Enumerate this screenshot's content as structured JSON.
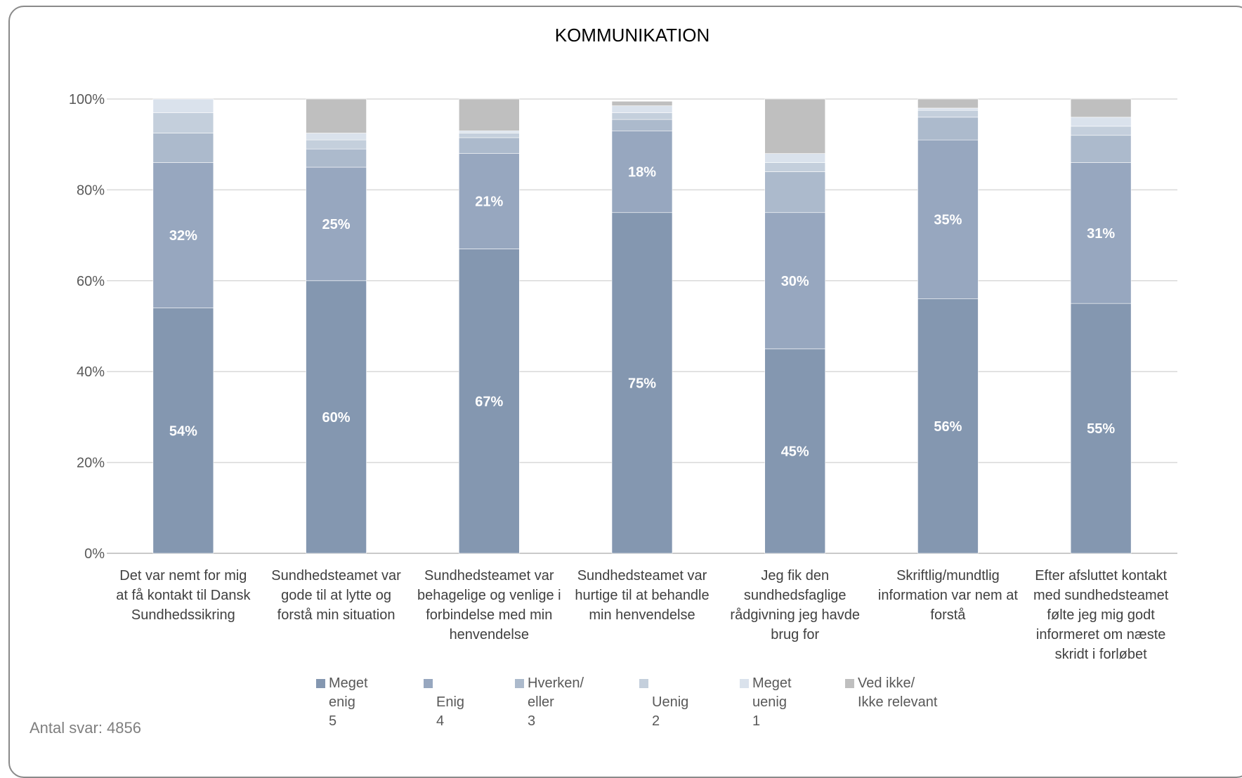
{
  "chart_data": {
    "type": "bar",
    "stacked": true,
    "title": "KOMMUNIKATION",
    "ylim": [
      0,
      100
    ],
    "y_ticks": [
      "0%",
      "20%",
      "40%",
      "60%",
      "80%",
      "100%"
    ],
    "grid": true,
    "legend_position": "bottom",
    "categories": [
      "Det var nemt for mig at få kontakt til Dansk Sundhedssikring",
      "Sundhedsteamet var gode til at lytte og forstå min situation",
      "Sundhedsteamet var behagelige og venlige i forbindelse med min henvendelse",
      "Sundhedsteamet var hurtige til at behandle min henvendelse",
      "Jeg fik den sundhedsfaglige rådgivning jeg havde brug for",
      "Skriftlig/mundtlig information var nem at forstå",
      "Efter afsluttet kontakt med sundhedsteamet følte jeg mig godt informeret om næste skridt i forløbet"
    ],
    "category_lines": [
      [
        "Det var nemt for mig",
        "at få kontakt til Dansk",
        "Sundhedssikring"
      ],
      [
        "Sundhedsteamet var",
        "gode til at lytte og",
        "forstå min situation"
      ],
      [
        "Sundhedsteamet var",
        "behagelige og venlige i",
        "forbindelse med min",
        "henvendelse"
      ],
      [
        "Sundhedsteamet var",
        "hurtige til at behandle",
        "min henvendelse"
      ],
      [
        "Jeg fik den",
        "sundhedsfaglige",
        "rådgivning jeg havde",
        "brug for"
      ],
      [
        "Skriftlig/mundtlig",
        "information var nem at",
        "forstå"
      ],
      [
        "Efter afsluttet kontakt",
        "med sundhedsteamet",
        "følte jeg mig godt",
        "informeret om næste",
        "skridt i forløbet"
      ]
    ],
    "series": [
      {
        "name": "Meget enig 5",
        "legend_lines": [
          "Meget",
          "enig",
          "5"
        ],
        "color": "#8497b0",
        "values": [
          54,
          60,
          67,
          75,
          45,
          56,
          55
        ],
        "labels": [
          "54%",
          "60%",
          "67%",
          "75%",
          "45%",
          "56%",
          "55%"
        ]
      },
      {
        "name": "Enig 4",
        "legend_lines": [
          "",
          "Enig",
          "4"
        ],
        "color": "#97a7bf",
        "values": [
          32,
          25,
          21,
          18,
          30,
          35,
          31
        ],
        "labels": [
          "32%",
          "25%",
          "21%",
          "18%",
          "30%",
          "35%",
          "31%"
        ]
      },
      {
        "name": "Hverken/ eller 3",
        "legend_lines": [
          "Hverken/",
          "eller",
          "3"
        ],
        "color": "#acbacc",
        "values": [
          6.5,
          4,
          3.5,
          2.5,
          9,
          5,
          6
        ]
      },
      {
        "name": "Uenig 2",
        "legend_lines": [
          "",
          "Uenig",
          "2"
        ],
        "color": "#c4cfdc",
        "values": [
          4.5,
          2,
          1,
          1.5,
          2,
          1.5,
          2
        ]
      },
      {
        "name": "Meget uenig 1",
        "legend_lines": [
          "Meget",
          "uenig",
          "1"
        ],
        "color": "#dae2ec",
        "values": [
          3,
          1.5,
          0.5,
          1.5,
          2,
          0.5,
          2
        ]
      },
      {
        "name": "Ved ikke/ Ikke relevant",
        "legend_lines": [
          "Ved ikke/",
          "Ikke relevant",
          ""
        ],
        "color": "#bfbfbf",
        "values": [
          0,
          7.5,
          7,
          1,
          12,
          2,
          4
        ]
      }
    ]
  },
  "footer": {
    "respondents": "Antal svar: 4856"
  }
}
